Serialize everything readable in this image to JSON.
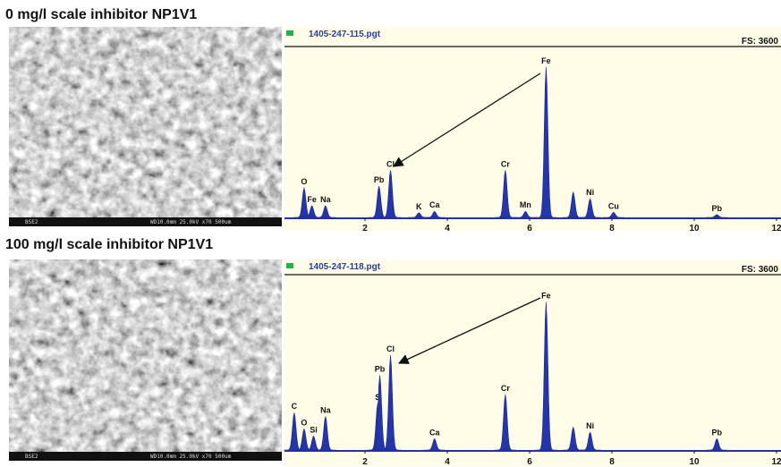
{
  "panels": [
    {
      "title": "0 mg/l scale inhibitor NP1V1",
      "image": {
        "detector": "BSE2",
        "info": "WD10.0mm 25.0kV x70 500um"
      },
      "spectrum": {
        "file": "1405-247-115.pgt",
        "full_scale": "FS: 3600",
        "xlim": [
          0,
          12
        ],
        "xticks": [
          2,
          4,
          6,
          8,
          10,
          12
        ],
        "ylim": [
          0,
          3600
        ],
        "peaks": [
          {
            "label": "O",
            "energy": 0.52,
            "counts": 630
          },
          {
            "label": "Fe",
            "energy": 0.71,
            "counts": 250
          },
          {
            "label": "Na",
            "energy": 1.04,
            "counts": 250
          },
          {
            "label": "Pb",
            "energy": 2.34,
            "counts": 670
          },
          {
            "label": "Cl",
            "energy": 2.62,
            "counts": 1010
          },
          {
            "label": "K",
            "energy": 3.31,
            "counts": 100
          },
          {
            "label": "Ca",
            "energy": 3.69,
            "counts": 130
          },
          {
            "label": "Cr",
            "energy": 5.41,
            "counts": 1010
          },
          {
            "label": "Mn",
            "energy": 5.9,
            "counts": 130
          },
          {
            "label": "Fe",
            "energy": 6.4,
            "counts": 3220
          },
          {
            "label": null,
            "energy": 7.06,
            "counts": 540
          },
          {
            "label": "Ni",
            "energy": 7.47,
            "counts": 400
          },
          {
            "label": "Cu",
            "energy": 8.04,
            "counts": 110
          },
          {
            "label": "Pb",
            "energy": 10.55,
            "counts": 60
          }
        ]
      }
    },
    {
      "title": "100 mg/l scale inhibitor NP1V1",
      "image": {
        "detector": "BSE2",
        "info": "WD10.0mm 25.0kV x70 500um"
      },
      "spectrum": {
        "file": "1405-247-118.pgt",
        "full_scale": "FS: 3600",
        "xlim": [
          0,
          12
        ],
        "xticks": [
          2,
          4,
          6,
          8,
          10,
          12
        ],
        "ylim": [
          0,
          3600
        ],
        "peaks": [
          {
            "label": "C",
            "energy": 0.28,
            "counts": 800
          },
          {
            "label": "O",
            "energy": 0.52,
            "counts": 450
          },
          {
            "label": "Si",
            "energy": 0.75,
            "counts": 300
          },
          {
            "label": "Na",
            "energy": 1.04,
            "counts": 720
          },
          {
            "label": "S",
            "energy": 2.31,
            "counts": 1000
          },
          {
            "label": "Pb",
            "energy": 2.36,
            "counts": 1600
          },
          {
            "label": "Cl",
            "energy": 2.62,
            "counts": 2030
          },
          {
            "label": "Ca",
            "energy": 3.69,
            "counts": 240
          },
          {
            "label": "Cr",
            "energy": 5.41,
            "counts": 1190
          },
          {
            "label": "Fe",
            "energy": 6.4,
            "counts": 3170
          },
          {
            "label": null,
            "energy": 7.06,
            "counts": 490
          },
          {
            "label": "Ni",
            "energy": 7.47,
            "counts": 380
          },
          {
            "label": "Pb",
            "energy": 10.55,
            "counts": 240
          }
        ]
      }
    }
  ]
}
